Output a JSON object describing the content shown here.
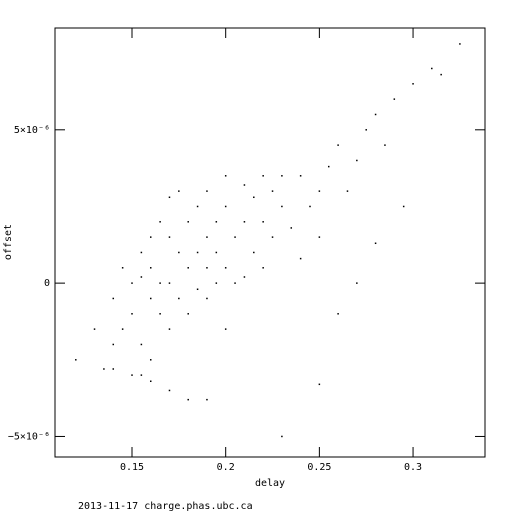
{
  "chart_data": {
    "type": "scatter",
    "x_label": "delay",
    "y_label": "offset",
    "footer": "2013-11-17 charge.phas.ubc.ca",
    "xlim": [
      0.1089,
      0.3384
    ],
    "ylim": [
      -5.67e-06,
      8.32e-06
    ],
    "xticks": [
      0.15,
      0.2,
      0.25,
      0.3
    ],
    "yticks": [
      {
        "value": -5e-06,
        "label": "−5×10⁻⁶"
      },
      0,
      {
        "value": 5e-06,
        "label": "5×10⁻⁶"
      }
    ],
    "color": "#000000",
    "points": [
      {
        "x": 0.12,
        "y": -2.5e-06
      },
      {
        "x": 0.13,
        "y": -1.5e-06
      },
      {
        "x": 0.135,
        "y": -2.8e-06
      },
      {
        "x": 0.14,
        "y": -5e-07
      },
      {
        "x": 0.14,
        "y": -2e-06
      },
      {
        "x": 0.145,
        "y": 5e-07
      },
      {
        "x": 0.145,
        "y": -1.5e-06
      },
      {
        "x": 0.15,
        "y": -1e-06
      },
      {
        "x": 0.15,
        "y": 0
      },
      {
        "x": 0.15,
        "y": -3e-06
      },
      {
        "x": 0.155,
        "y": -2e-06
      },
      {
        "x": 0.155,
        "y": 1e-06
      },
      {
        "x": 0.155,
        "y": 2e-07
      },
      {
        "x": 0.16,
        "y": -5e-07
      },
      {
        "x": 0.16,
        "y": 1.5e-06
      },
      {
        "x": 0.16,
        "y": -2.5e-06
      },
      {
        "x": 0.16,
        "y": 5e-07
      },
      {
        "x": 0.165,
        "y": -1e-06
      },
      {
        "x": 0.165,
        "y": 2e-06
      },
      {
        "x": 0.165,
        "y": 0
      },
      {
        "x": 0.17,
        "y": 0
      },
      {
        "x": 0.17,
        "y": 1.5e-06
      },
      {
        "x": 0.17,
        "y": -1.5e-06
      },
      {
        "x": 0.17,
        "y": 2.8e-06
      },
      {
        "x": 0.175,
        "y": -5e-07
      },
      {
        "x": 0.175,
        "y": 1e-06
      },
      {
        "x": 0.175,
        "y": 3e-06
      },
      {
        "x": 0.18,
        "y": 5e-07
      },
      {
        "x": 0.18,
        "y": 2e-06
      },
      {
        "x": 0.18,
        "y": -1e-06
      },
      {
        "x": 0.18,
        "y": -3.8e-06
      },
      {
        "x": 0.185,
        "y": 1e-06
      },
      {
        "x": 0.185,
        "y": 2.5e-06
      },
      {
        "x": 0.185,
        "y": -2e-07
      },
      {
        "x": 0.19,
        "y": 1.5e-06
      },
      {
        "x": 0.19,
        "y": -5e-07
      },
      {
        "x": 0.19,
        "y": 3e-06
      },
      {
        "x": 0.19,
        "y": 5e-07
      },
      {
        "x": 0.195,
        "y": 2e-06
      },
      {
        "x": 0.195,
        "y": 0
      },
      {
        "x": 0.195,
        "y": 1e-06
      },
      {
        "x": 0.2,
        "y": 2.5e-06
      },
      {
        "x": 0.2,
        "y": 5e-07
      },
      {
        "x": 0.2,
        "y": -1.5e-06
      },
      {
        "x": 0.2,
        "y": 3.5e-06
      },
      {
        "x": 0.205,
        "y": 1.5e-06
      },
      {
        "x": 0.205,
        "y": 0
      },
      {
        "x": 0.21,
        "y": 2e-06
      },
      {
        "x": 0.21,
        "y": 3.2e-06
      },
      {
        "x": 0.21,
        "y": 2e-07
      },
      {
        "x": 0.215,
        "y": 1e-06
      },
      {
        "x": 0.215,
        "y": 2.8e-06
      },
      {
        "x": 0.22,
        "y": 2e-06
      },
      {
        "x": 0.22,
        "y": 3.5e-06
      },
      {
        "x": 0.22,
        "y": 5e-07
      },
      {
        "x": 0.225,
        "y": 1.5e-06
      },
      {
        "x": 0.225,
        "y": 3e-06
      },
      {
        "x": 0.23,
        "y": 2.5e-06
      },
      {
        "x": 0.23,
        "y": 3.5e-06
      },
      {
        "x": 0.235,
        "y": 1.8e-06
      },
      {
        "x": 0.24,
        "y": 3.5e-06
      },
      {
        "x": 0.24,
        "y": 8e-07
      },
      {
        "x": 0.245,
        "y": 2.5e-06
      },
      {
        "x": 0.25,
        "y": 3e-06
      },
      {
        "x": 0.25,
        "y": 1.5e-06
      },
      {
        "x": 0.255,
        "y": 3.8e-06
      },
      {
        "x": 0.26,
        "y": 4.5e-06
      },
      {
        "x": 0.265,
        "y": 3e-06
      },
      {
        "x": 0.27,
        "y": 4e-06
      },
      {
        "x": 0.275,
        "y": 5e-06
      },
      {
        "x": 0.28,
        "y": 5.5e-06
      },
      {
        "x": 0.285,
        "y": 4.5e-06
      },
      {
        "x": 0.29,
        "y": 6e-06
      },
      {
        "x": 0.3,
        "y": 6.5e-06
      },
      {
        "x": 0.31,
        "y": 7e-06
      },
      {
        "x": 0.315,
        "y": 6.8e-06
      },
      {
        "x": 0.325,
        "y": 7.8e-06
      },
      {
        "x": 0.17,
        "y": -3.5e-06
      },
      {
        "x": 0.19,
        "y": -3.8e-06
      },
      {
        "x": 0.26,
        "y": -1e-06
      },
      {
        "x": 0.27,
        "y": 0
      },
      {
        "x": 0.155,
        "y": -3e-06
      },
      {
        "x": 0.14,
        "y": -2.8e-06
      },
      {
        "x": 0.16,
        "y": -3.2e-06
      },
      {
        "x": 0.23,
        "y": -5e-06
      },
      {
        "x": 0.28,
        "y": 1.3e-06
      },
      {
        "x": 0.295,
        "y": 2.5e-06
      },
      {
        "x": 0.25,
        "y": -3.3e-06
      }
    ]
  }
}
